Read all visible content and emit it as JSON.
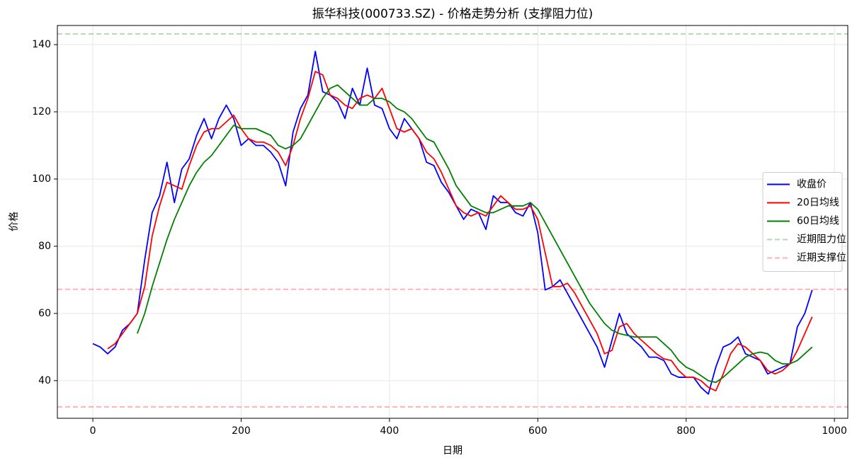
{
  "chart_data": {
    "type": "line",
    "title": "振华科技(000733.SZ) - 价格走势分析 (支撑阻力位)",
    "x_label": "日期",
    "y_label": "价格",
    "x": [
      0,
      10,
      20,
      30,
      40,
      50,
      60,
      70,
      80,
      90,
      100,
      110,
      120,
      130,
      140,
      150,
      160,
      170,
      180,
      190,
      200,
      210,
      220,
      230,
      240,
      250,
      260,
      270,
      280,
      290,
      300,
      310,
      320,
      330,
      340,
      350,
      360,
      370,
      380,
      390,
      400,
      410,
      420,
      430,
      440,
      450,
      460,
      470,
      480,
      490,
      500,
      510,
      520,
      530,
      540,
      550,
      560,
      570,
      580,
      590,
      600,
      610,
      620,
      630,
      640,
      650,
      660,
      670,
      680,
      690,
      700,
      710,
      720,
      730,
      740,
      750,
      760,
      770,
      780,
      790,
      800,
      810,
      820,
      830,
      840,
      850,
      860,
      870,
      880,
      890,
      900,
      910,
      920,
      930,
      940,
      950,
      960,
      970
    ],
    "series": [
      {
        "name": "收盘价",
        "color": "#0000ff",
        "values": [
          51,
          50,
          48,
          50,
          55,
          57,
          60,
          76,
          90,
          95,
          105,
          93,
          103,
          106,
          113,
          118,
          112,
          118,
          122,
          118,
          110,
          112,
          110,
          110,
          108,
          105,
          98,
          114,
          121,
          125,
          138,
          126,
          125,
          123,
          118,
          127,
          122,
          133,
          122,
          121,
          115,
          112,
          118,
          115,
          112,
          105,
          104,
          99,
          96,
          92,
          88,
          91,
          90,
          85,
          95,
          93,
          93,
          90,
          89,
          93,
          84,
          67,
          68,
          70,
          66,
          62,
          58,
          54,
          50,
          44,
          52,
          60,
          54,
          52,
          50,
          47,
          47,
          46,
          42,
          41,
          41,
          41,
          38,
          36,
          44,
          50,
          51,
          53,
          48,
          47,
          46,
          42,
          43,
          44,
          45,
          56,
          60,
          67
        ]
      },
      {
        "name": "20日均线",
        "color": "#ff0000",
        "values": [
          null,
          null,
          49.5,
          51,
          54,
          57,
          60,
          68,
          83,
          92,
          99,
          98,
          97,
          104,
          110,
          114,
          115,
          115,
          117,
          119,
          115,
          112,
          111,
          111,
          110,
          108,
          104,
          110,
          118,
          124,
          132,
          131,
          125,
          124,
          122,
          121,
          124,
          125,
          124,
          127,
          121,
          115,
          114,
          115,
          112,
          108,
          106,
          102,
          97,
          92,
          90,
          89,
          90,
          89,
          92,
          95,
          93,
          91,
          91,
          92,
          88,
          78,
          68,
          68,
          69,
          66,
          62,
          58,
          54,
          48,
          49,
          56,
          57,
          54,
          52,
          50,
          48,
          46.5,
          46,
          43,
          41,
          41,
          40,
          38,
          37,
          42,
          48,
          51,
          50,
          48,
          46,
          43,
          42,
          43,
          45,
          49,
          54,
          59
        ]
      },
      {
        "name": "60日均线",
        "color": "#008000",
        "values": [
          null,
          null,
          null,
          null,
          null,
          null,
          54,
          60,
          68,
          75,
          82,
          88,
          93,
          98,
          102,
          105,
          107,
          110,
          113,
          116,
          115,
          115,
          115,
          114,
          113,
          110,
          109,
          110,
          112,
          116,
          120,
          124,
          127,
          128,
          126,
          124,
          122,
          122,
          124,
          124,
          123,
          121,
          120,
          118,
          115,
          112,
          111,
          107,
          103,
          98,
          95,
          92,
          91,
          90,
          90,
          91,
          92,
          92,
          92,
          93,
          91,
          87,
          83,
          79,
          75,
          71,
          67,
          63,
          60,
          57,
          55,
          54,
          53.5,
          53,
          53,
          53,
          53,
          51,
          49,
          46,
          44,
          43,
          41.5,
          40,
          39.5,
          41,
          43,
          45,
          47,
          48,
          48.5,
          48,
          46,
          45,
          45,
          46,
          48,
          50
        ]
      }
    ],
    "hlines": [
      {
        "name": "近期阻力位",
        "color": "#008000",
        "value": 143.2
      },
      {
        "name": "近期支撑位",
        "color": "#ff0000",
        "value": 67.2
      },
      {
        "color": "#ff0000",
        "value": 32.2
      }
    ],
    "hline_alpha": 0.3,
    "xlim": [
      -47.8,
      1018
    ],
    "ylim": [
      28.8,
      145.7
    ],
    "xticks": [
      0,
      200,
      400,
      600,
      800,
      1000
    ],
    "yticks": [
      40,
      60,
      80,
      100,
      120,
      140
    ],
    "grid": true,
    "legend": "center right"
  }
}
